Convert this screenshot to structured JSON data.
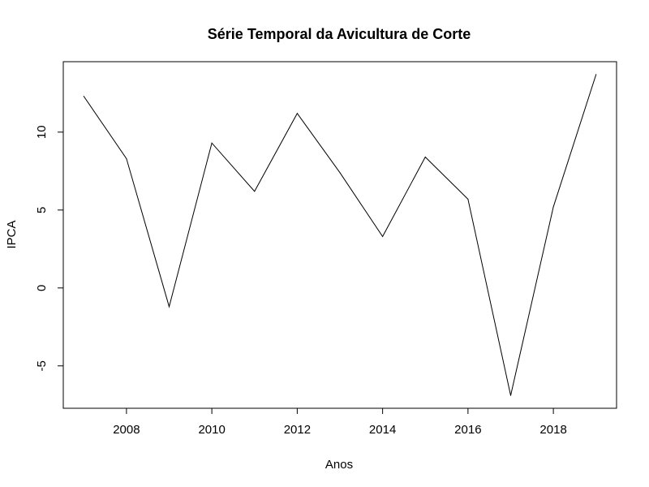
{
  "chart_data": {
    "type": "line",
    "title": "Série Temporal da Avicultura de Corte",
    "xlabel": "Anos",
    "ylabel": "IPCA",
    "x": [
      2007,
      2008,
      2009,
      2010,
      2011,
      2012,
      2013,
      2014,
      2015,
      2016,
      2017,
      2018,
      2019
    ],
    "series": [
      {
        "name": "IPCA",
        "values": [
          12.3,
          8.3,
          -1.2,
          9.3,
          6.2,
          11.2,
          7.4,
          3.3,
          8.4,
          5.7,
          -6.9,
          5.2,
          13.7
        ]
      }
    ],
    "xlim": [
      2006.52,
      2019.48
    ],
    "ylim": [
      -7.72,
      14.52
    ],
    "xticks": [
      2008,
      2010,
      2012,
      2014,
      2016,
      2018
    ],
    "yticks": [
      -5,
      0,
      5,
      10
    ],
    "xtick_labels": [
      "2008",
      "2010",
      "2012",
      "2014",
      "2016",
      "2018"
    ],
    "ytick_labels": [
      "-5",
      "0",
      "5",
      "10"
    ],
    "grid": false,
    "legend": "none",
    "colors": {
      "line": "#000000",
      "axis": "#000000"
    }
  }
}
